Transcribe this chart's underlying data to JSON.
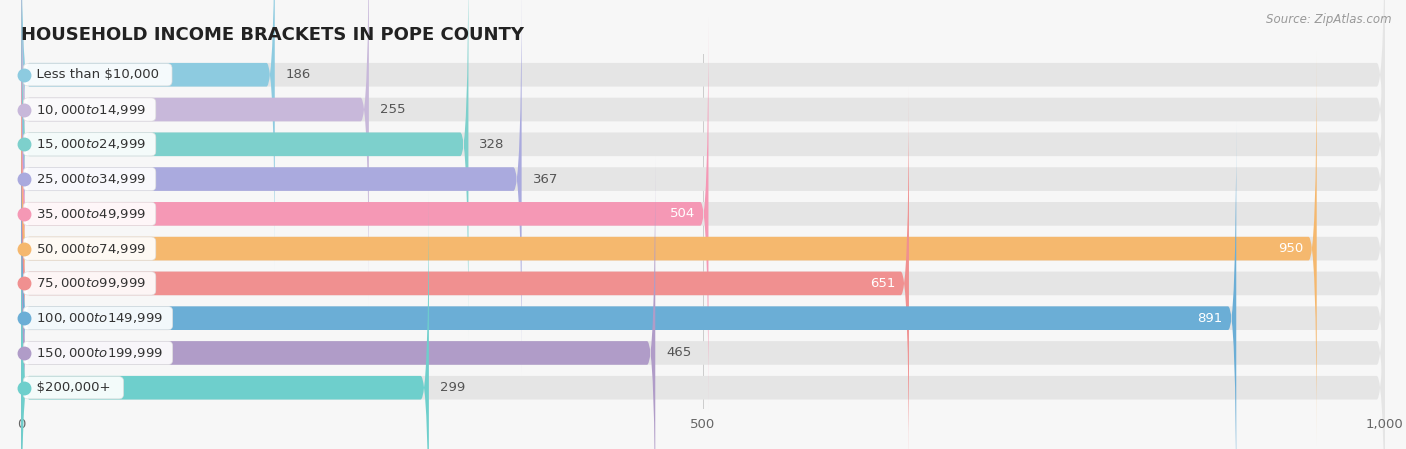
{
  "title": "HOUSEHOLD INCOME BRACKETS IN POPE COUNTY",
  "source": "Source: ZipAtlas.com",
  "categories": [
    "Less than $10,000",
    "$10,000 to $14,999",
    "$15,000 to $24,999",
    "$25,000 to $34,999",
    "$35,000 to $49,999",
    "$50,000 to $74,999",
    "$75,000 to $99,999",
    "$100,000 to $149,999",
    "$150,000 to $199,999",
    "$200,000+"
  ],
  "values": [
    186,
    255,
    328,
    367,
    504,
    950,
    651,
    891,
    465,
    299
  ],
  "bar_colors": [
    "#8DCBE0",
    "#C8B8DA",
    "#7DD0CC",
    "#AAAADE",
    "#F598B5",
    "#F5B86E",
    "#F09090",
    "#6BAED6",
    "#B09CC8",
    "#6ECFCC"
  ],
  "xlim": [
    0,
    1000
  ],
  "xticks": [
    0,
    500,
    1000
  ],
  "xticklabels": [
    "0",
    "500",
    "1,000"
  ],
  "background_color": "#f7f7f7",
  "bar_background_color": "#e5e5e5",
  "label_background_color": "#ffffff",
  "title_fontsize": 13,
  "tick_fontsize": 9.5,
  "value_fontsize": 9.5,
  "cat_fontsize": 9.5,
  "bar_height": 0.68,
  "label_threshold_inside": 500
}
